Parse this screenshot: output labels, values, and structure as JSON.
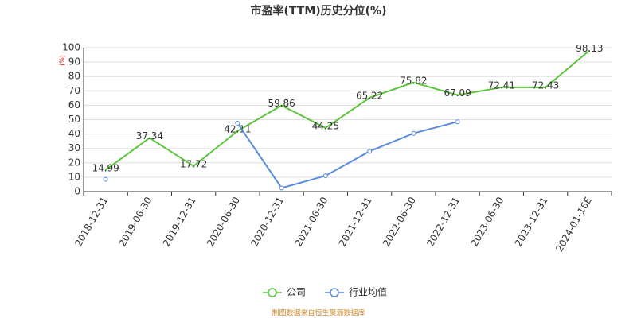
{
  "chart_data": {
    "type": "line",
    "title": "市盈率(TTM)历史分位(%)",
    "y_label": "(%)",
    "source": "制图数据来自恒生聚源数据库",
    "categories": [
      "2018-12-31",
      "2019-06-30",
      "2019-12-31",
      "2020-06-30",
      "2020-12-31",
      "2021-06-30",
      "2021-12-31",
      "2022-06-30",
      "2022-12-31",
      "2023-06-30",
      "2023-12-31",
      "2024-01-16E"
    ],
    "series": [
      {
        "name": "公司",
        "color": "#5cc43b",
        "labels": true,
        "markers": false,
        "values": [
          14.99,
          37.34,
          17.72,
          42.11,
          59.86,
          44.25,
          65.22,
          75.82,
          67.09,
          72.41,
          72.43,
          98.13
        ]
      },
      {
        "name": "行业均值",
        "color": "#5b8be0",
        "labels": false,
        "markers": true,
        "values": [
          8.5,
          null,
          null,
          47.5,
          2.5,
          11,
          28,
          40.5,
          48.5,
          null,
          null,
          null
        ]
      }
    ],
    "ylim": [
      0,
      100
    ],
    "yticks": [
      0,
      10,
      20,
      30,
      40,
      50,
      60,
      70,
      80,
      90,
      100
    ],
    "grid": true
  }
}
